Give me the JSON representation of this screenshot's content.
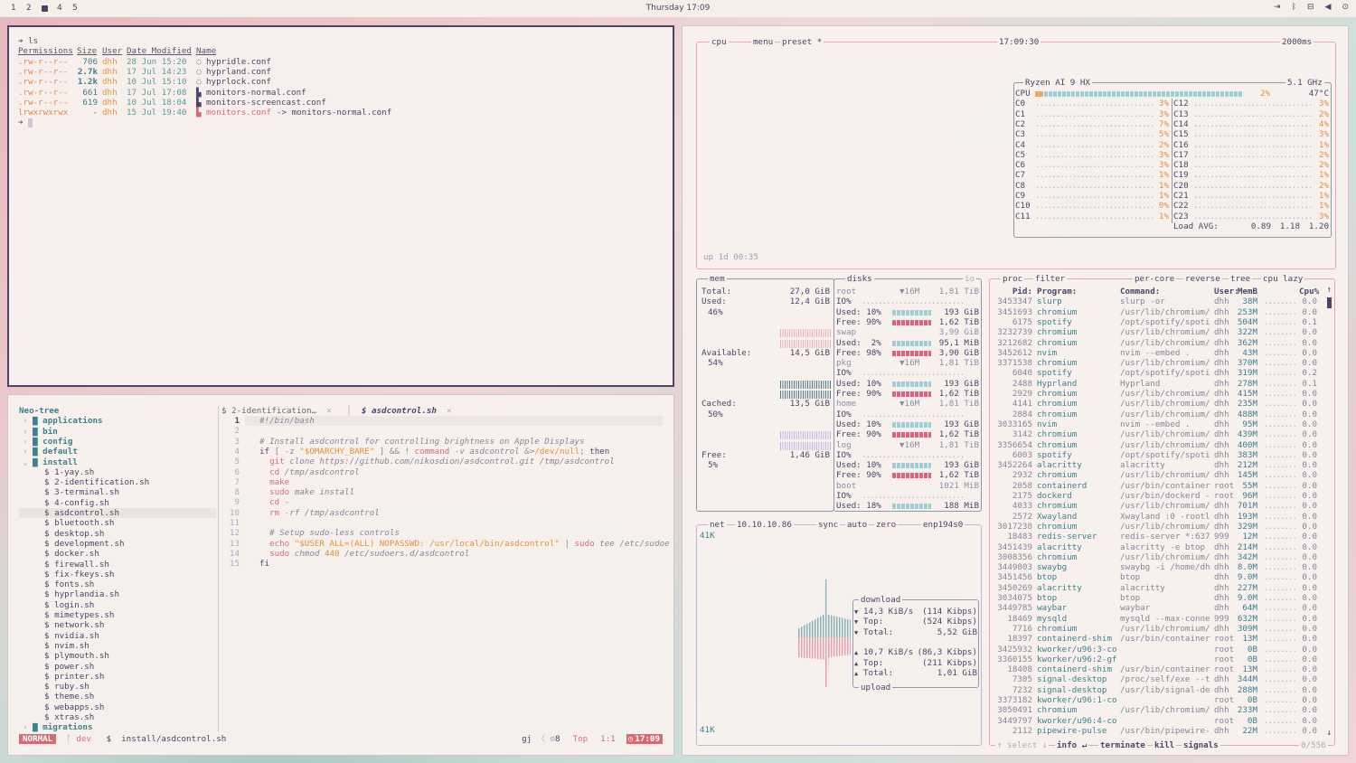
{
  "topbar": {
    "workspaces": [
      "1",
      "2",
      "3",
      "4",
      "5"
    ],
    "active_workspace": "3",
    "clock": "Thursday 17:09",
    "tray_icons": [
      "logout-icon",
      "bluetooth-icon",
      "network-icon",
      "volume-icon",
      "power-icon"
    ]
  },
  "terminal": {
    "prompt_cmd": "ls",
    "headers": [
      "Permissions",
      "Size",
      "User",
      "Date Modified",
      "Name"
    ],
    "rows": [
      {
        "perm": ".rw-r--r--",
        "size": "706",
        "user": "dhh",
        "date": "28 Jun 15:20",
        "name": "hypridle.conf",
        "link": ""
      },
      {
        "perm": ".rw-r--r--",
        "size": "2.7k",
        "user": "dhh",
        "date": "17 Jul 14:23",
        "name": "hyprland.conf",
        "link": ""
      },
      {
        "perm": ".rw-r--r--",
        "size": "1.2k",
        "user": "dhh",
        "date": "10 Jul 15:10",
        "name": "hyprlock.conf",
        "link": ""
      },
      {
        "perm": ".rw-r--r--",
        "size": "661",
        "user": "dhh",
        "date": "17 Jul 17:08",
        "name": "monitors-normal.conf",
        "link": ""
      },
      {
        "perm": ".rw-r--r--",
        "size": "619",
        "user": "dhh",
        "date": "10 Jul 18:04",
        "name": "monitors-screencast.conf",
        "link": ""
      },
      {
        "perm": "lrwxrwxrwx",
        "size": "-",
        "user": "dhh",
        "date": "15 Jul 19:40",
        "name": "monitors.conf",
        "link": "-> monitors-normal.conf"
      }
    ]
  },
  "nvim": {
    "tree_title": "Neo-tree",
    "tree": [
      {
        "label": "applications",
        "dir": true,
        "depth": 0
      },
      {
        "label": "bin",
        "dir": true,
        "depth": 0
      },
      {
        "label": "config",
        "dir": true,
        "depth": 0
      },
      {
        "label": "default",
        "dir": true,
        "depth": 0
      },
      {
        "label": "install",
        "dir": true,
        "open": true,
        "depth": 0
      },
      {
        "label": "1-yay.sh",
        "depth": 1
      },
      {
        "label": "2-identification.sh",
        "depth": 1
      },
      {
        "label": "3-terminal.sh",
        "depth": 1
      },
      {
        "label": "4-config.sh",
        "depth": 1
      },
      {
        "label": "asdcontrol.sh",
        "depth": 1,
        "selected": true
      },
      {
        "label": "bluetooth.sh",
        "depth": 1
      },
      {
        "label": "desktop.sh",
        "depth": 1
      },
      {
        "label": "development.sh",
        "depth": 1
      },
      {
        "label": "docker.sh",
        "depth": 1
      },
      {
        "label": "firewall.sh",
        "depth": 1
      },
      {
        "label": "fix-fkeys.sh",
        "depth": 1
      },
      {
        "label": "fonts.sh",
        "depth": 1
      },
      {
        "label": "hyprlandia.sh",
        "depth": 1
      },
      {
        "label": "login.sh",
        "depth": 1
      },
      {
        "label": "mimetypes.sh",
        "depth": 1
      },
      {
        "label": "network.sh",
        "depth": 1
      },
      {
        "label": "nvidia.sh",
        "depth": 1
      },
      {
        "label": "nvim.sh",
        "depth": 1
      },
      {
        "label": "plymouth.sh",
        "depth": 1
      },
      {
        "label": "power.sh",
        "depth": 1
      },
      {
        "label": "printer.sh",
        "depth": 1
      },
      {
        "label": "ruby.sh",
        "depth": 1
      },
      {
        "label": "theme.sh",
        "depth": 1
      },
      {
        "label": "webapps.sh",
        "depth": 1
      },
      {
        "label": "xtras.sh",
        "depth": 1
      },
      {
        "label": "migrations",
        "dir": true,
        "depth": 0
      }
    ],
    "tabs": [
      {
        "label": "$ 2-identification…",
        "active": false
      },
      {
        "label": "$ asdcontrol.sh",
        "active": true
      }
    ],
    "code": [
      [
        [
          "#!/bin/bash",
          "grey i"
        ]
      ],
      [],
      [
        [
          "# Install asdcontrol for controlling brightness on Apple Displays",
          "grey i"
        ]
      ],
      [
        [
          "if",
          "navy"
        ],
        [
          " [ -z ",
          "grey"
        ],
        [
          "\"$OMARCHY_BARE\"",
          "orange"
        ],
        [
          " ] && ! ",
          "grey"
        ],
        [
          "command",
          "pink"
        ],
        [
          " -v asdcontrol &>",
          "grey i"
        ],
        [
          "/dev/null",
          "orange"
        ],
        [
          "; ",
          "grey"
        ],
        [
          "then",
          "navy"
        ]
      ],
      [
        [
          "  git",
          "pink"
        ],
        [
          " clone https://github.com/nikosdion/asdcontrol.git /tmp/asdcontrol",
          "grey i"
        ]
      ],
      [
        [
          "  cd",
          "pink"
        ],
        [
          " /tmp/asdcontrol",
          "grey i"
        ]
      ],
      [
        [
          "  make",
          "pink"
        ]
      ],
      [
        [
          "  sudo",
          "pink"
        ],
        [
          " make install",
          "grey i"
        ]
      ],
      [
        [
          "  cd",
          "pink"
        ],
        [
          " -",
          "grey"
        ]
      ],
      [
        [
          "  rm",
          "pink"
        ],
        [
          " -rf /tmp/asdcontrol",
          "grey i"
        ]
      ],
      [],
      [
        [
          "  # Setup sudo-less controls",
          "grey i"
        ]
      ],
      [
        [
          "  echo",
          "pink"
        ],
        [
          " \"$USER ALL=(ALL) NOPASSWD: /usr/local/bin/asdcontrol\"",
          "orange"
        ],
        [
          " | ",
          "grey"
        ],
        [
          "sudo",
          "pink"
        ],
        [
          " tee /etc/sudoe",
          "grey i"
        ]
      ],
      [
        [
          "  sudo",
          "pink"
        ],
        [
          " chmod ",
          "grey i"
        ],
        [
          "440",
          "orange"
        ],
        [
          " /etc/sudoers.d/asdcontrol",
          "grey i"
        ]
      ],
      [
        [
          "fi",
          "navy"
        ]
      ]
    ],
    "status": {
      "mode": "NORMAL",
      "branch": "dev",
      "file": "install/asdcontrol.sh",
      "right1": "gj",
      "right2": "8",
      "position": "Top",
      "cursor": "1:1",
      "time": "17:09"
    }
  },
  "btop": {
    "cpu": {
      "title": "cpu",
      "menu": "menu",
      "preset": "preset *",
      "clock": "17:09:30",
      "interval": "2000ms",
      "uptime": "up 1d 00:35",
      "model": "Ryzen AI 9 HX",
      "freq": "5.1 GHz",
      "total_label": "CPU",
      "total_pct": 2,
      "total_text": "2%",
      "temp": "47°C",
      "cores": [
        {
          "n": "C0",
          "p": "3%"
        },
        {
          "n": "C1",
          "p": "3%"
        },
        {
          "n": "C2",
          "p": "7%"
        },
        {
          "n": "C3",
          "p": "5%"
        },
        {
          "n": "C4",
          "p": "2%"
        },
        {
          "n": "C5",
          "p": "3%"
        },
        {
          "n": "C6",
          "p": "3%"
        },
        {
          "n": "C7",
          "p": "1%"
        },
        {
          "n": "C8",
          "p": "1%"
        },
        {
          "n": "C9",
          "p": "1%"
        },
        {
          "n": "C10",
          "p": "0%"
        },
        {
          "n": "C11",
          "p": "1%"
        },
        {
          "n": "C12",
          "p": "3%"
        },
        {
          "n": "C13",
          "p": "2%"
        },
        {
          "n": "C14",
          "p": "4%"
        },
        {
          "n": "C15",
          "p": "3%"
        },
        {
          "n": "C16",
          "p": "1%"
        },
        {
          "n": "C17",
          "p": "2%"
        },
        {
          "n": "C18",
          "p": "2%"
        },
        {
          "n": "C19",
          "p": "1%"
        },
        {
          "n": "C20",
          "p": "2%"
        },
        {
          "n": "C21",
          "p": "1%"
        },
        {
          "n": "C22",
          "p": "1%"
        },
        {
          "n": "C23",
          "p": "3%"
        }
      ],
      "load_label": "Load AVG:",
      "load": [
        "0.89",
        "1.18",
        "1.20"
      ]
    },
    "mem": {
      "title": "mem",
      "items": [
        {
          "label": "Total:",
          "value": "27,0 GiB",
          "pct": ""
        },
        {
          "label": "Used:",
          "value": "12,4 GiB",
          "pct": "46%"
        },
        {
          "label": "Available:",
          "value": "14,5 GiB",
          "pct": "54%"
        },
        {
          "label": "Cached:",
          "value": "13,5 GiB",
          "pct": "50%"
        },
        {
          "label": "Free:",
          "value": "1,46 GiB",
          "pct": "5%"
        }
      ]
    },
    "disks": {
      "title": "disks",
      "io": "io",
      "rows": [
        {
          "t": "h",
          "name": "root",
          "io": "▼16M",
          "val": "1,81 TiB"
        },
        {
          "t": "io",
          "name": "IO%"
        },
        {
          "t": "u",
          "name": "Used: 10%",
          "pct": 10,
          "val": "193 GiB"
        },
        {
          "t": "f",
          "name": "Free: 90%",
          "pct": 90,
          "val": "1,62 TiB"
        },
        {
          "t": "h",
          "name": "swap",
          "io": "",
          "val": "3,99 GiB"
        },
        {
          "t": "u",
          "name": "Used:  2%",
          "pct": 2,
          "val": "95,1 MiB"
        },
        {
          "t": "f",
          "name": "Free: 98%",
          "pct": 98,
          "val": "3,90 GiB"
        },
        {
          "t": "h",
          "name": "pkg",
          "io": "▼16M",
          "val": "1,81 TiB"
        },
        {
          "t": "io",
          "name": "IO%"
        },
        {
          "t": "u",
          "name": "Used: 10%",
          "pct": 10,
          "val": "193 GiB"
        },
        {
          "t": "f",
          "name": "Free: 90%",
          "pct": 90,
          "val": "1,62 TiB"
        },
        {
          "t": "h",
          "name": "home",
          "io": "▼16M",
          "val": "1,81 TiB"
        },
        {
          "t": "io",
          "name": "IO%"
        },
        {
          "t": "u",
          "name": "Used: 10%",
          "pct": 10,
          "val": "193 GiB"
        },
        {
          "t": "f",
          "name": "Free: 90%",
          "pct": 90,
          "val": "1,62 TiB"
        },
        {
          "t": "h",
          "name": "log",
          "io": "▼16M",
          "val": "1,81 TiB"
        },
        {
          "t": "io",
          "name": "IO%"
        },
        {
          "t": "u",
          "name": "Used: 10%",
          "pct": 10,
          "val": "193 GiB"
        },
        {
          "t": "f",
          "name": "Free: 90%",
          "pct": 90,
          "val": "1,62 TiB"
        },
        {
          "t": "h",
          "name": "boot",
          "io": "",
          "val": "1021 MiB"
        },
        {
          "t": "io",
          "name": "IO%"
        },
        {
          "t": "u",
          "name": "Used: 18%",
          "pct": 18,
          "val": "188 MiB"
        }
      ]
    },
    "net": {
      "title": "net",
      "ip": "10.10.10.86",
      "sync": "sync",
      "auto": "auto",
      "zero": "zero",
      "iface": "enp194s0",
      "scale_top": "41K",
      "scale_bottom": "41K",
      "download_label": "download",
      "upload_label": "upload",
      "rows": [
        [
          "▼",
          "14,3 KiB/s",
          "(114 Kibps)"
        ],
        [
          "▼",
          "Top:",
          "(524 Kibps)"
        ],
        [
          "▼",
          "Total:",
          "5,52 GiB"
        ],
        [
          "",
          "",
          ""
        ],
        [
          "▲",
          "10,7 KiB/s",
          "(86,3 Kibps)"
        ],
        [
          "▲",
          "Top:",
          "(211 Kibps)"
        ],
        [
          "▲",
          "Total:",
          "1,01 GiB"
        ]
      ]
    },
    "proc": {
      "title": "proc",
      "filter": "filter",
      "per_core": "per-core",
      "reverse": "reverse",
      "tree": "tree",
      "sort": "cpu lazy",
      "headers": [
        "Pid:",
        "Program:",
        "Command:",
        "User:",
        "MemB",
        "Cpu%"
      ],
      "rows": [
        [
          "3453347",
          "slurp",
          "slurp -or",
          "dhh",
          "38M",
          "0.0"
        ],
        [
          "3451693",
          "chromium",
          "/usr/lib/chromium/",
          "dhh",
          "253M",
          "0.0"
        ],
        [
          "6175",
          "spotify",
          "/opt/spotify/spoti",
          "dhh",
          "504M",
          "0.1"
        ],
        [
          "3232739",
          "chromium",
          "/usr/lib/chromium/",
          "dhh",
          "322M",
          "0.0"
        ],
        [
          "3212682",
          "chromium",
          "/usr/lib/chromium/",
          "dhh",
          "362M",
          "0.0"
        ],
        [
          "3452612",
          "nvim",
          "nvim --embed .",
          "dhh",
          "43M",
          "0.0"
        ],
        [
          "3371538",
          "chromium",
          "/usr/lib/chromium/",
          "dhh",
          "370M",
          "0.0"
        ],
        [
          "6040",
          "spotify",
          "/opt/spotify/spoti",
          "dhh",
          "319M",
          "0.2"
        ],
        [
          "2488",
          "Hyprland",
          "Hyprland",
          "dhh",
          "278M",
          "0.1"
        ],
        [
          "2929",
          "chromium",
          "/usr/lib/chromium/",
          "dhh",
          "415M",
          "0.0"
        ],
        [
          "4141",
          "chromium",
          "/usr/lib/chromium/",
          "dhh",
          "235M",
          "0.0"
        ],
        [
          "2884",
          "chromium",
          "/usr/lib/chromium/",
          "dhh",
          "488M",
          "0.0"
        ],
        [
          "3033165",
          "nvim",
          "nvim --embed .",
          "dhh",
          "95M",
          "0.0"
        ],
        [
          "3142",
          "chromium",
          "/usr/lib/chromium/",
          "dhh",
          "439M",
          "0.0"
        ],
        [
          "3356654",
          "chromium",
          "/usr/lib/chromium/",
          "dhh",
          "400M",
          "0.0"
        ],
        [
          "6003",
          "spotify",
          "/opt/spotify/spoti",
          "dhh",
          "383M",
          "0.0"
        ],
        [
          "3452264",
          "alacritty",
          "alacritty",
          "dhh",
          "212M",
          "0.0"
        ],
        [
          "2932",
          "chromium",
          "/usr/lib/chromium/",
          "dhh",
          "145M",
          "0.0"
        ],
        [
          "2058",
          "containerd",
          "/usr/bin/container",
          "root",
          "55M",
          "0.0"
        ],
        [
          "2175",
          "dockerd",
          "/usr/bin/dockerd -",
          "root",
          "96M",
          "0.0"
        ],
        [
          "4033",
          "chromium",
          "/usr/lib/chromium/",
          "dhh",
          "701M",
          "0.0"
        ],
        [
          "2572",
          "Xwayland",
          "Xwayland :0 -rootl",
          "dhh",
          "193M",
          "0.0"
        ],
        [
          "3017238",
          "chromium",
          "/usr/lib/chromium/",
          "dhh",
          "329M",
          "0.0"
        ],
        [
          "18483",
          "redis-server",
          "redis-server *:637",
          "999",
          "12M",
          "0.0"
        ],
        [
          "3451439",
          "alacritty",
          "alacritty -e btop",
          "dhh",
          "214M",
          "0.0"
        ],
        [
          "3008356",
          "chromium",
          "/usr/lib/chromium/",
          "dhh",
          "342M",
          "0.0"
        ],
        [
          "3449803",
          "swaybg",
          "swaybg -i /home/dh",
          "dhh",
          "8.0M",
          "0.0"
        ],
        [
          "3451456",
          "btop",
          "btop",
          "dhh",
          "9.0M",
          "0.0"
        ],
        [
          "3450269",
          "alacritty",
          "alacritty",
          "dhh",
          "227M",
          "0.0"
        ],
        [
          "3034075",
          "btop",
          "btop",
          "dhh",
          "9.0M",
          "0.0"
        ],
        [
          "3449785",
          "waybar",
          "waybar",
          "dhh",
          "64M",
          "0.0"
        ],
        [
          "18469",
          "mysqld",
          "mysqld --max-conne",
          "999",
          "632M",
          "0.0"
        ],
        [
          "7716",
          "chromium",
          "/usr/lib/chromium/",
          "dhh",
          "309M",
          "0.0"
        ],
        [
          "18397",
          "containerd-shim",
          "/usr/bin/container",
          "root",
          "13M",
          "0.0"
        ],
        [
          "3425932",
          "kworker/u96:3-co",
          "",
          "root",
          "0B",
          "0.0"
        ],
        [
          "3360155",
          "kworker/u96:2-gf",
          "",
          "root",
          "0B",
          "0.0"
        ],
        [
          "18408",
          "containerd-shim",
          "/usr/bin/container",
          "root",
          "13M",
          "0.0"
        ],
        [
          "7305",
          "signal-desktop",
          "/proc/self/exe --t",
          "dhh",
          "344M",
          "0.0"
        ],
        [
          "7232",
          "signal-desktop",
          "/usr/lib/signal-de",
          "dhh",
          "288M",
          "0.0"
        ],
        [
          "3373182",
          "kworker/u96:1-co",
          "",
          "root",
          "0B",
          "0.0"
        ],
        [
          "3050491",
          "chromium",
          "/usr/lib/chromium/",
          "dhh",
          "233M",
          "0.0"
        ],
        [
          "3449797",
          "kworker/u96:4-co",
          "",
          "root",
          "0B",
          "0.0"
        ],
        [
          "2112",
          "pipewire-pulse",
          "/usr/bin/pipewire-",
          "dhh",
          "22M",
          "0.0"
        ]
      ],
      "footer": {
        "select": "↑ select ↓",
        "info": "info ↵",
        "terminate": "terminate",
        "kill": "kill",
        "signals": "signals",
        "count": "0/556"
      }
    }
  },
  "colors": {
    "accent_pink": "#d66a7e",
    "teal": "#3e808c",
    "orange": "#e0903a",
    "cpu_bar": "#9ecfd6",
    "free_bar": "#e0607e"
  }
}
